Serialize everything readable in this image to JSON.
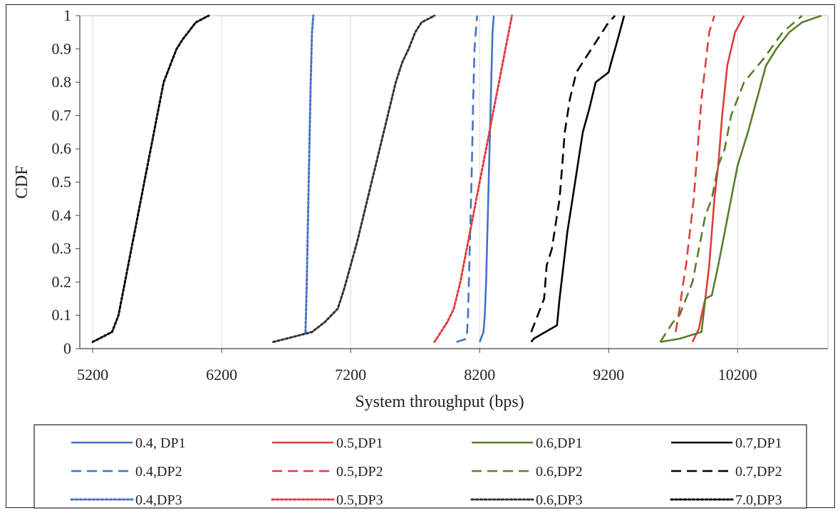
{
  "chart_data": {
    "type": "line",
    "xlabel": "System throughput (bps)",
    "ylabel": "CDF",
    "xlim": [
      5100,
      10900
    ],
    "ylim": [
      0,
      1
    ],
    "x_ticks": [
      "5200",
      "6200",
      "7200",
      "8200",
      "9200",
      "10200"
    ],
    "x_tick_values": [
      5200,
      6200,
      7200,
      8200,
      9200,
      10200
    ],
    "y_ticks": [
      "0",
      "0.1",
      "0.2",
      "0.3",
      "0.4",
      "0.5",
      "0.6",
      "0.7",
      "0.8",
      "0.9",
      "1"
    ],
    "y_tick_values": [
      0,
      0.1,
      0.2,
      0.3,
      0.4,
      0.5,
      0.6,
      0.7,
      0.8,
      0.9,
      1
    ],
    "grid": "vertical",
    "legend_position": "bottom",
    "series": [
      {
        "name": "0.4, DP1",
        "color": "#4472c4",
        "dash": "solid",
        "x": [
          8200,
          8230,
          8240,
          8250,
          8260,
          8270,
          8280,
          8290,
          8300,
          8310
        ],
        "y": [
          0.02,
          0.05,
          0.1,
          0.2,
          0.35,
          0.5,
          0.65,
          0.8,
          0.95,
          1.0
        ]
      },
      {
        "name": "0.5,DP1",
        "color": "#e03c3c",
        "dash": "solid",
        "x": [
          9850,
          9900,
          9920,
          9950,
          9980,
          10000,
          10020,
          10050,
          10080,
          10120,
          10180,
          10250
        ],
        "y": [
          0.02,
          0.06,
          0.1,
          0.15,
          0.25,
          0.35,
          0.45,
          0.55,
          0.7,
          0.85,
          0.95,
          1.0
        ]
      },
      {
        "name": "0.6,DP1",
        "color": "#5a7d2a",
        "dash": "solid",
        "x": [
          9600,
          9750,
          9920,
          9950,
          10000,
          10050,
          10100,
          10150,
          10200,
          10280,
          10350,
          10420,
          10500,
          10600,
          10700,
          10850
        ],
        "y": [
          0.02,
          0.03,
          0.05,
          0.15,
          0.16,
          0.25,
          0.35,
          0.45,
          0.55,
          0.65,
          0.75,
          0.85,
          0.9,
          0.95,
          0.98,
          1.0
        ]
      },
      {
        "name": "0.7,DP1",
        "color": "#000000",
        "dash": "solid",
        "x": [
          8600,
          8620,
          8800,
          8820,
          8850,
          8880,
          8920,
          8960,
          9000,
          9050,
          9100,
          9200,
          9220,
          9250,
          9300,
          9320
        ],
        "y": [
          0.02,
          0.03,
          0.07,
          0.15,
          0.25,
          0.35,
          0.45,
          0.55,
          0.65,
          0.72,
          0.8,
          0.83,
          0.86,
          0.9,
          0.97,
          1.0
        ]
      },
      {
        "name": "0.4,DP2",
        "color": "#4472c4",
        "dash": "dash",
        "x": [
          8020,
          8100,
          8110,
          8120,
          8130,
          8140,
          8150,
          8160,
          8180
        ],
        "y": [
          0.02,
          0.03,
          0.1,
          0.25,
          0.4,
          0.55,
          0.75,
          0.9,
          1.0
        ]
      },
      {
        "name": "0.5,DP2",
        "color": "#e03c3c",
        "dash": "dash",
        "x": [
          9720,
          9750,
          9780,
          9800,
          9830,
          9860,
          9880,
          9900,
          9920,
          9950,
          9980,
          10020
        ],
        "y": [
          0.05,
          0.12,
          0.2,
          0.25,
          0.35,
          0.45,
          0.55,
          0.65,
          0.75,
          0.85,
          0.95,
          1.0
        ]
      },
      {
        "name": "0.6,DP2",
        "color": "#5a7d2a",
        "dash": "dash",
        "x": [
          9600,
          9700,
          9750,
          9800,
          9850,
          9900,
          9950,
          10000,
          10050,
          10100,
          10150,
          10250,
          10400,
          10550,
          10700
        ],
        "y": [
          0.02,
          0.08,
          0.1,
          0.15,
          0.2,
          0.3,
          0.4,
          0.45,
          0.55,
          0.6,
          0.7,
          0.8,
          0.87,
          0.95,
          1.0
        ]
      },
      {
        "name": "0.7,DP2",
        "color": "#000000",
        "dash": "dash",
        "x": [
          8600,
          8650,
          8700,
          8720,
          8760,
          8800,
          8820,
          8840,
          8860,
          8880,
          8900,
          8950,
          9000,
          9100,
          9200,
          9250
        ],
        "y": [
          0.05,
          0.1,
          0.15,
          0.25,
          0.3,
          0.4,
          0.45,
          0.55,
          0.65,
          0.7,
          0.75,
          0.83,
          0.86,
          0.92,
          0.98,
          1.0
        ]
      },
      {
        "name": "0.4,DP3",
        "color": "#4472c4",
        "dash": "dot",
        "x": [
          6850,
          6860,
          6870,
          6880,
          6890,
          6900,
          6910
        ],
        "y": [
          0.05,
          0.2,
          0.4,
          0.6,
          0.8,
          0.95,
          1.0
        ]
      },
      {
        "name": "0.5,DP3",
        "color": "#e03c3c",
        "dash": "dot",
        "x": [
          7850,
          7900,
          7950,
          8000,
          8050,
          8100,
          8150,
          8200,
          8250,
          8300,
          8350,
          8400,
          8450
        ],
        "y": [
          0.02,
          0.05,
          0.08,
          0.12,
          0.2,
          0.3,
          0.4,
          0.5,
          0.6,
          0.7,
          0.8,
          0.9,
          1.0
        ]
      },
      {
        "name": "0.6,DP3",
        "color": "#333333",
        "dash": "dot",
        "x": [
          6600,
          6700,
          6800,
          6900,
          7000,
          7100,
          7150,
          7200,
          7250,
          7300,
          7350,
          7400,
          7450,
          7500,
          7550,
          7600,
          7650,
          7700,
          7750,
          7850
        ],
        "y": [
          0.02,
          0.03,
          0.04,
          0.05,
          0.08,
          0.12,
          0.18,
          0.25,
          0.32,
          0.4,
          0.48,
          0.56,
          0.64,
          0.72,
          0.8,
          0.86,
          0.9,
          0.95,
          0.98,
          1.0
        ]
      },
      {
        "name": "7.0,DP3",
        "color": "#000000",
        "dash": "dot",
        "x": [
          5200,
          5350,
          5400,
          5450,
          5500,
          5550,
          5600,
          5650,
          5700,
          5750,
          5800,
          5850,
          5900,
          6000,
          6100
        ],
        "y": [
          0.02,
          0.05,
          0.1,
          0.2,
          0.3,
          0.4,
          0.5,
          0.6,
          0.7,
          0.8,
          0.85,
          0.9,
          0.93,
          0.98,
          1.0
        ]
      }
    ]
  }
}
